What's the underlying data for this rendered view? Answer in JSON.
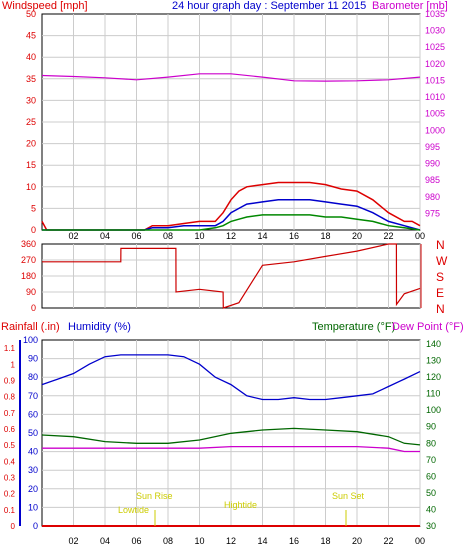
{
  "header": {
    "left_title": "Windspeed [mph]",
    "center_title": "24 hour graph day : September 11 2015",
    "right_title": "Barometer [mb]"
  },
  "colors": {
    "wind": "#dd0000",
    "gust_blue": "#0000cc",
    "gust_green": "#008800",
    "barometer": "#cc00cc",
    "direction": "#cc0000",
    "humidity": "#0000cc",
    "temperature": "#006600",
    "dewpoint": "#cc00cc",
    "rain": "#dd0000",
    "sun_label": "#cccc00",
    "grid": "#cccccc",
    "frame": "#000000"
  },
  "x_ticks": [
    "02",
    "04",
    "06",
    "08",
    "10",
    "12",
    "14",
    "16",
    "18",
    "20",
    "22",
    "00"
  ],
  "sun_labels": {
    "sunrise": "Sun Rise",
    "sunset": "Sun Set",
    "lowtide": "Lowtide",
    "hightide": "Hightide"
  },
  "chart_data": [
    {
      "type": "line",
      "id": "wind-barometer",
      "title": "24 hour graph day : September 11 2015",
      "ylabel": "Windspeed [mph]",
      "y2label": "Barometer [mb]",
      "ylim": [
        0,
        50
      ],
      "y2lim": [
        970,
        1035
      ],
      "yticks": [
        0,
        5,
        10,
        15,
        20,
        25,
        30,
        35,
        40,
        45,
        50
      ],
      "y2ticks": [
        975,
        980,
        985,
        990,
        995,
        1000,
        1005,
        1010,
        1015,
        1020,
        1025,
        1030,
        1035
      ],
      "series": [
        {
          "key": "barometer",
          "axis": "y2",
          "x": [
            0,
            2,
            4,
            6,
            8,
            10,
            12,
            14,
            16,
            18,
            20,
            22,
            24
          ],
          "values": [
            1016.5,
            1016.2,
            1015.8,
            1015.2,
            1016.0,
            1017.0,
            1017.0,
            1016.0,
            1014.9,
            1014.8,
            1014.9,
            1015.2,
            1016.0
          ]
        },
        {
          "key": "wind",
          "axis": "y",
          "x": [
            0,
            0.3,
            0.6,
            1,
            6.5,
            7,
            8,
            9,
            10,
            11,
            11.5,
            12,
            12.5,
            13,
            14,
            15,
            16,
            17,
            18,
            19,
            20,
            21,
            22,
            23,
            23.5,
            24
          ],
          "values": [
            2,
            0,
            0,
            0,
            0,
            1,
            1,
            1.5,
            2,
            2,
            4,
            7,
            9,
            10,
            10.5,
            11,
            11,
            11,
            10.5,
            9.5,
            9,
            7,
            4,
            2,
            2,
            1
          ]
        },
        {
          "key": "gust_blue",
          "axis": "y",
          "x": [
            0,
            6.5,
            7,
            8,
            9,
            10,
            11,
            11.5,
            12,
            12.5,
            13,
            14,
            15,
            16,
            17,
            18,
            19,
            20,
            21,
            22,
            23,
            24
          ],
          "values": [
            0,
            0,
            0.5,
            0.5,
            1,
            1,
            1,
            2,
            4,
            5,
            6,
            6.5,
            7,
            7,
            7,
            6.5,
            6,
            5.5,
            4,
            2,
            1,
            0
          ]
        },
        {
          "key": "gust_green",
          "axis": "y",
          "x": [
            0,
            7,
            8,
            9,
            10,
            11,
            11.5,
            12,
            12.5,
            13,
            14,
            15,
            16,
            17,
            18,
            19,
            20,
            21,
            22,
            23,
            24
          ],
          "values": [
            0,
            0,
            0,
            0,
            0,
            0.5,
            1,
            2,
            2.5,
            3,
            3.5,
            3.5,
            3.5,
            3.5,
            3,
            3,
            2.5,
            2,
            1,
            0.5,
            0
          ]
        }
      ]
    },
    {
      "type": "line",
      "id": "wind-direction",
      "ylim": [
        0,
        360
      ],
      "yticks": [
        0,
        90,
        180,
        270,
        360
      ],
      "y2ticks_labels": [
        "N",
        "W",
        "S",
        "E",
        "N"
      ],
      "series": [
        {
          "key": "direction",
          "x": [
            0,
            5,
            5.01,
            8.5,
            8.51,
            10,
            11.5,
            11.51,
            12.5,
            14,
            16,
            18,
            20,
            22,
            22.5,
            22.51,
            23,
            24
          ],
          "values": [
            260,
            260,
            335,
            335,
            90,
            105,
            90,
            0,
            30,
            240,
            260,
            290,
            320,
            360,
            360,
            20,
            80,
            110
          ]
        }
      ]
    },
    {
      "type": "line",
      "id": "humidity-temperature",
      "ylabel": "Humidity (%)",
      "y_rain_label": "Rainfall (.in)",
      "y2label": "Temperature (°F)",
      "y3label": "Dew Point (°F)",
      "ylim": [
        0,
        100
      ],
      "yticks": [
        0,
        10,
        20,
        30,
        40,
        50,
        60,
        70,
        80,
        90,
        100
      ],
      "rain_ticks": [
        "0",
        "0.1",
        "0.2",
        "0.3",
        "0.4",
        "0.5",
        "0.6",
        "0.7",
        "0.8",
        "0.9",
        "1",
        "1.1"
      ],
      "y2lim": [
        30,
        140
      ],
      "y2ticks": [
        30,
        40,
        50,
        60,
        70,
        80,
        90,
        100,
        110,
        120,
        130,
        140
      ],
      "series": [
        {
          "key": "humidity",
          "axis": "y",
          "x": [
            0,
            1,
            2,
            3,
            4,
            5,
            6,
            7,
            8,
            9,
            10,
            11,
            12,
            13,
            14,
            15,
            16,
            17,
            18,
            19,
            20,
            21,
            22,
            23,
            24
          ],
          "values": [
            76,
            79,
            82,
            87,
            91,
            92,
            92,
            92,
            92,
            91,
            87,
            80,
            76,
            70,
            68,
            68,
            69,
            68,
            68,
            69,
            70,
            71,
            75,
            79,
            83
          ]
        },
        {
          "key": "temperature",
          "axis": "y2",
          "x": [
            0,
            2,
            4,
            6,
            8,
            10,
            12,
            14,
            16,
            18,
            20,
            22,
            23,
            24
          ],
          "values": [
            85,
            84,
            81,
            80,
            80,
            82,
            86,
            88,
            89,
            88,
            87,
            84,
            80,
            79
          ]
        },
        {
          "key": "dewpoint",
          "axis": "y2",
          "x": [
            0,
            2,
            4,
            6,
            8,
            10,
            12,
            14,
            16,
            18,
            20,
            22,
            23,
            24
          ],
          "values": [
            77,
            77,
            77,
            77,
            77,
            77,
            78,
            78,
            78,
            78,
            78,
            77,
            75,
            75
          ]
        },
        {
          "key": "rain",
          "axis": "rain",
          "x": [
            0,
            24
          ],
          "values": [
            0,
            0
          ]
        }
      ]
    }
  ]
}
